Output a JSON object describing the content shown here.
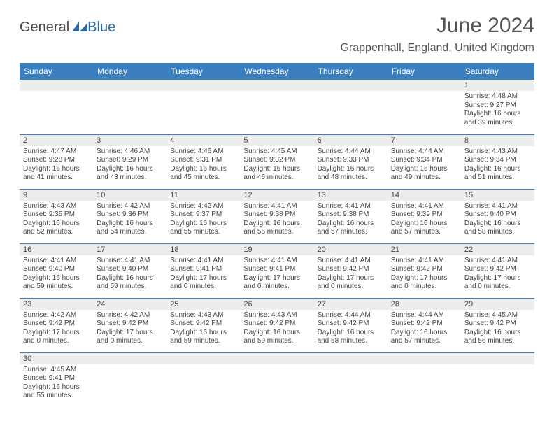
{
  "logo": {
    "word1": "General",
    "word2": "Blue"
  },
  "title": "June 2024",
  "location": "Grappenhall, England, United Kingdom",
  "colors": {
    "header_bg": "#3b7fbf",
    "header_text": "#ffffff",
    "band_bg": "#eceded",
    "border": "#3b7fbf",
    "text": "#444444",
    "logo_gray": "#4a4a4a",
    "logo_blue": "#2d6aa3"
  },
  "days_of_week": [
    "Sunday",
    "Monday",
    "Tuesday",
    "Wednesday",
    "Thursday",
    "Friday",
    "Saturday"
  ],
  "weeks": [
    [
      {
        "n": "",
        "lines": []
      },
      {
        "n": "",
        "lines": []
      },
      {
        "n": "",
        "lines": []
      },
      {
        "n": "",
        "lines": []
      },
      {
        "n": "",
        "lines": []
      },
      {
        "n": "",
        "lines": []
      },
      {
        "n": "1",
        "lines": [
          "Sunrise: 4:48 AM",
          "Sunset: 9:27 PM",
          "Daylight: 16 hours",
          "and 39 minutes."
        ]
      }
    ],
    [
      {
        "n": "2",
        "lines": [
          "Sunrise: 4:47 AM",
          "Sunset: 9:28 PM",
          "Daylight: 16 hours",
          "and 41 minutes."
        ]
      },
      {
        "n": "3",
        "lines": [
          "Sunrise: 4:46 AM",
          "Sunset: 9:29 PM",
          "Daylight: 16 hours",
          "and 43 minutes."
        ]
      },
      {
        "n": "4",
        "lines": [
          "Sunrise: 4:46 AM",
          "Sunset: 9:31 PM",
          "Daylight: 16 hours",
          "and 45 minutes."
        ]
      },
      {
        "n": "5",
        "lines": [
          "Sunrise: 4:45 AM",
          "Sunset: 9:32 PM",
          "Daylight: 16 hours",
          "and 46 minutes."
        ]
      },
      {
        "n": "6",
        "lines": [
          "Sunrise: 4:44 AM",
          "Sunset: 9:33 PM",
          "Daylight: 16 hours",
          "and 48 minutes."
        ]
      },
      {
        "n": "7",
        "lines": [
          "Sunrise: 4:44 AM",
          "Sunset: 9:34 PM",
          "Daylight: 16 hours",
          "and 49 minutes."
        ]
      },
      {
        "n": "8",
        "lines": [
          "Sunrise: 4:43 AM",
          "Sunset: 9:34 PM",
          "Daylight: 16 hours",
          "and 51 minutes."
        ]
      }
    ],
    [
      {
        "n": "9",
        "lines": [
          "Sunrise: 4:43 AM",
          "Sunset: 9:35 PM",
          "Daylight: 16 hours",
          "and 52 minutes."
        ]
      },
      {
        "n": "10",
        "lines": [
          "Sunrise: 4:42 AM",
          "Sunset: 9:36 PM",
          "Daylight: 16 hours",
          "and 54 minutes."
        ]
      },
      {
        "n": "11",
        "lines": [
          "Sunrise: 4:42 AM",
          "Sunset: 9:37 PM",
          "Daylight: 16 hours",
          "and 55 minutes."
        ]
      },
      {
        "n": "12",
        "lines": [
          "Sunrise: 4:41 AM",
          "Sunset: 9:38 PM",
          "Daylight: 16 hours",
          "and 56 minutes."
        ]
      },
      {
        "n": "13",
        "lines": [
          "Sunrise: 4:41 AM",
          "Sunset: 9:38 PM",
          "Daylight: 16 hours",
          "and 57 minutes."
        ]
      },
      {
        "n": "14",
        "lines": [
          "Sunrise: 4:41 AM",
          "Sunset: 9:39 PM",
          "Daylight: 16 hours",
          "and 57 minutes."
        ]
      },
      {
        "n": "15",
        "lines": [
          "Sunrise: 4:41 AM",
          "Sunset: 9:40 PM",
          "Daylight: 16 hours",
          "and 58 minutes."
        ]
      }
    ],
    [
      {
        "n": "16",
        "lines": [
          "Sunrise: 4:41 AM",
          "Sunset: 9:40 PM",
          "Daylight: 16 hours",
          "and 59 minutes."
        ]
      },
      {
        "n": "17",
        "lines": [
          "Sunrise: 4:41 AM",
          "Sunset: 9:40 PM",
          "Daylight: 16 hours",
          "and 59 minutes."
        ]
      },
      {
        "n": "18",
        "lines": [
          "Sunrise: 4:41 AM",
          "Sunset: 9:41 PM",
          "Daylight: 17 hours",
          "and 0 minutes."
        ]
      },
      {
        "n": "19",
        "lines": [
          "Sunrise: 4:41 AM",
          "Sunset: 9:41 PM",
          "Daylight: 17 hours",
          "and 0 minutes."
        ]
      },
      {
        "n": "20",
        "lines": [
          "Sunrise: 4:41 AM",
          "Sunset: 9:42 PM",
          "Daylight: 17 hours",
          "and 0 minutes."
        ]
      },
      {
        "n": "21",
        "lines": [
          "Sunrise: 4:41 AM",
          "Sunset: 9:42 PM",
          "Daylight: 17 hours",
          "and 0 minutes."
        ]
      },
      {
        "n": "22",
        "lines": [
          "Sunrise: 4:41 AM",
          "Sunset: 9:42 PM",
          "Daylight: 17 hours",
          "and 0 minutes."
        ]
      }
    ],
    [
      {
        "n": "23",
        "lines": [
          "Sunrise: 4:42 AM",
          "Sunset: 9:42 PM",
          "Daylight: 17 hours",
          "and 0 minutes."
        ]
      },
      {
        "n": "24",
        "lines": [
          "Sunrise: 4:42 AM",
          "Sunset: 9:42 PM",
          "Daylight: 17 hours",
          "and 0 minutes."
        ]
      },
      {
        "n": "25",
        "lines": [
          "Sunrise: 4:43 AM",
          "Sunset: 9:42 PM",
          "Daylight: 16 hours",
          "and 59 minutes."
        ]
      },
      {
        "n": "26",
        "lines": [
          "Sunrise: 4:43 AM",
          "Sunset: 9:42 PM",
          "Daylight: 16 hours",
          "and 59 minutes."
        ]
      },
      {
        "n": "27",
        "lines": [
          "Sunrise: 4:44 AM",
          "Sunset: 9:42 PM",
          "Daylight: 16 hours",
          "and 58 minutes."
        ]
      },
      {
        "n": "28",
        "lines": [
          "Sunrise: 4:44 AM",
          "Sunset: 9:42 PM",
          "Daylight: 16 hours",
          "and 57 minutes."
        ]
      },
      {
        "n": "29",
        "lines": [
          "Sunrise: 4:45 AM",
          "Sunset: 9:42 PM",
          "Daylight: 16 hours",
          "and 56 minutes."
        ]
      }
    ],
    [
      {
        "n": "30",
        "lines": [
          "Sunrise: 4:45 AM",
          "Sunset: 9:41 PM",
          "Daylight: 16 hours",
          "and 55 minutes."
        ]
      },
      {
        "n": "",
        "lines": []
      },
      {
        "n": "",
        "lines": []
      },
      {
        "n": "",
        "lines": []
      },
      {
        "n": "",
        "lines": []
      },
      {
        "n": "",
        "lines": []
      },
      {
        "n": "",
        "lines": []
      }
    ]
  ]
}
